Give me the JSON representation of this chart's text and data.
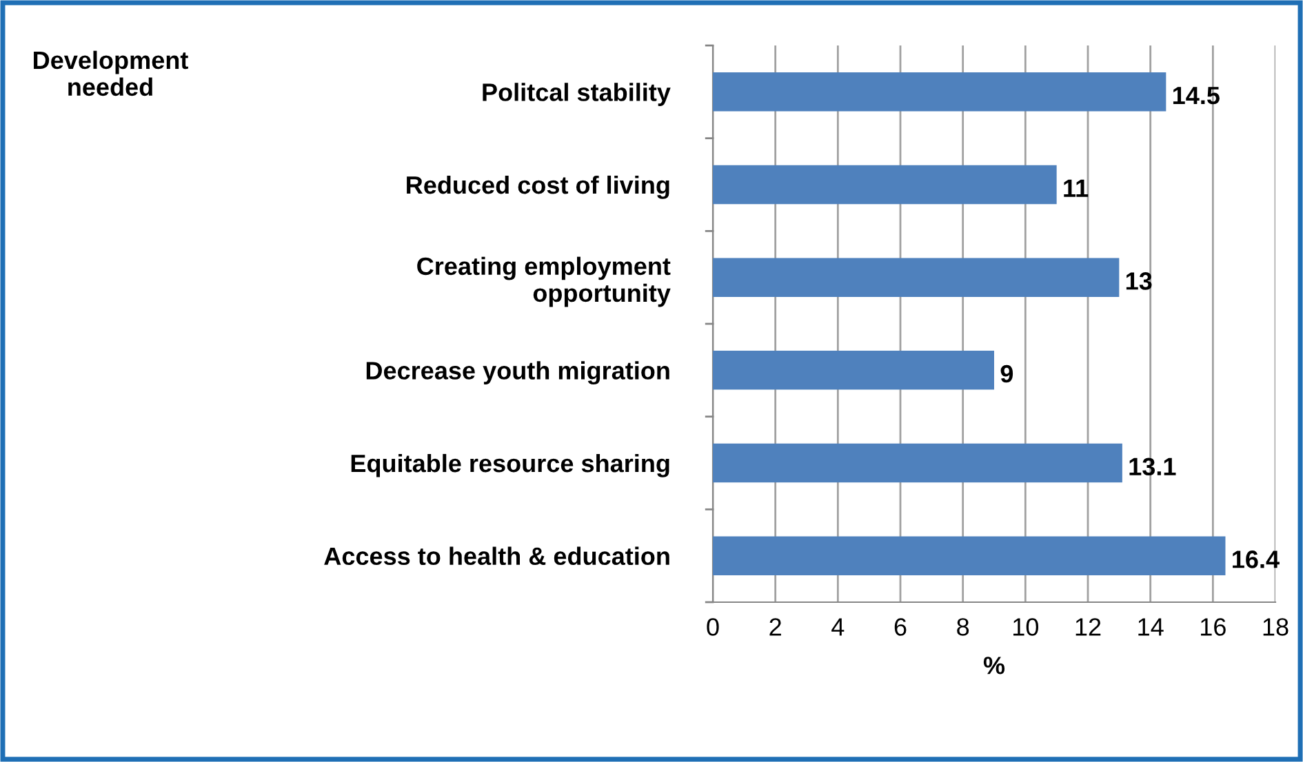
{
  "chart_data": {
    "type": "bar",
    "orientation": "horizontal",
    "annotations": [
      "Development\nneeded"
    ],
    "xlabel": "%",
    "categories": [
      "Politcal stability",
      "Reduced cost of living",
      "Creating employment\nopportunity",
      "Decrease youth migration",
      "Equitable resource sharing",
      "Access to health & education"
    ],
    "values": [
      14.5,
      11,
      13,
      9,
      13.1,
      16.4
    ],
    "color": "#4f81bd",
    "xlim": [
      0,
      18
    ],
    "xticks": [
      0,
      2,
      4,
      6,
      8,
      10,
      12,
      14,
      16,
      18
    ],
    "grid": "x",
    "data_labels": true
  }
}
